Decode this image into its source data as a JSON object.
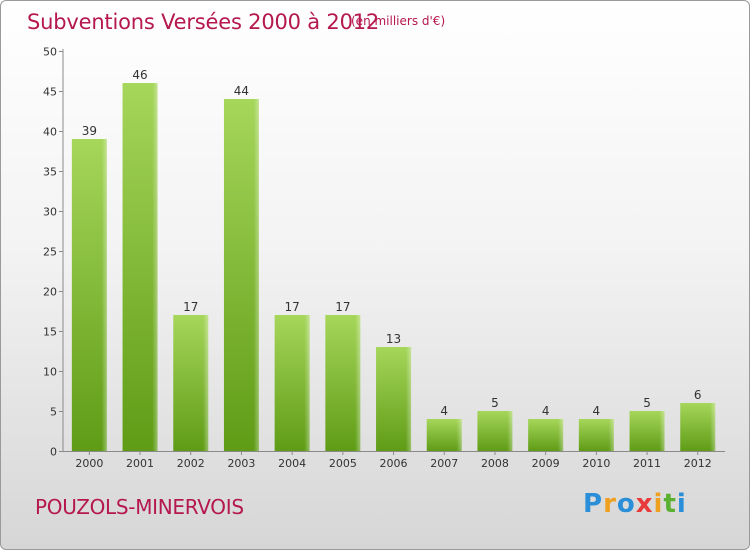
{
  "title": "Subventions Versées 2000 à 2012",
  "subtitle": "(en milliers d'€)",
  "commune": "POUZOLS-MINERVOIS",
  "brand": {
    "letters": [
      "P",
      "r",
      "o",
      "x",
      "i",
      "t",
      "i"
    ],
    "colors": [
      "#2a8fd8",
      "#f0a020",
      "#2a8fd8",
      "#e83a3a",
      "#f0a020",
      "#5ab030",
      "#2a8fd8"
    ]
  },
  "colors": {
    "bar_top": "#a6d65a",
    "bar_bottom": "#5f9c16",
    "title": "#b5174f",
    "grid": "#cfcfcf"
  },
  "chart_data": {
    "type": "bar",
    "categories": [
      "2000",
      "2001",
      "2002",
      "2003",
      "2004",
      "2005",
      "2006",
      "2007",
      "2008",
      "2009",
      "2010",
      "2011",
      "2012"
    ],
    "values": [
      39,
      46,
      17,
      44,
      17,
      17,
      13,
      4,
      5,
      4,
      4,
      5,
      6
    ],
    "data_labels": [
      "39",
      "46",
      "17",
      "44",
      "17",
      "17",
      "13",
      "4",
      "5",
      "4",
      "4",
      "5",
      "6"
    ],
    "y_ticks": [
      "0",
      "5",
      "10",
      "15",
      "20",
      "25",
      "30",
      "35",
      "40",
      "45",
      "50"
    ],
    "ylim": [
      0,
      50
    ],
    "grid": false,
    "xlabel": "",
    "ylabel": ""
  }
}
